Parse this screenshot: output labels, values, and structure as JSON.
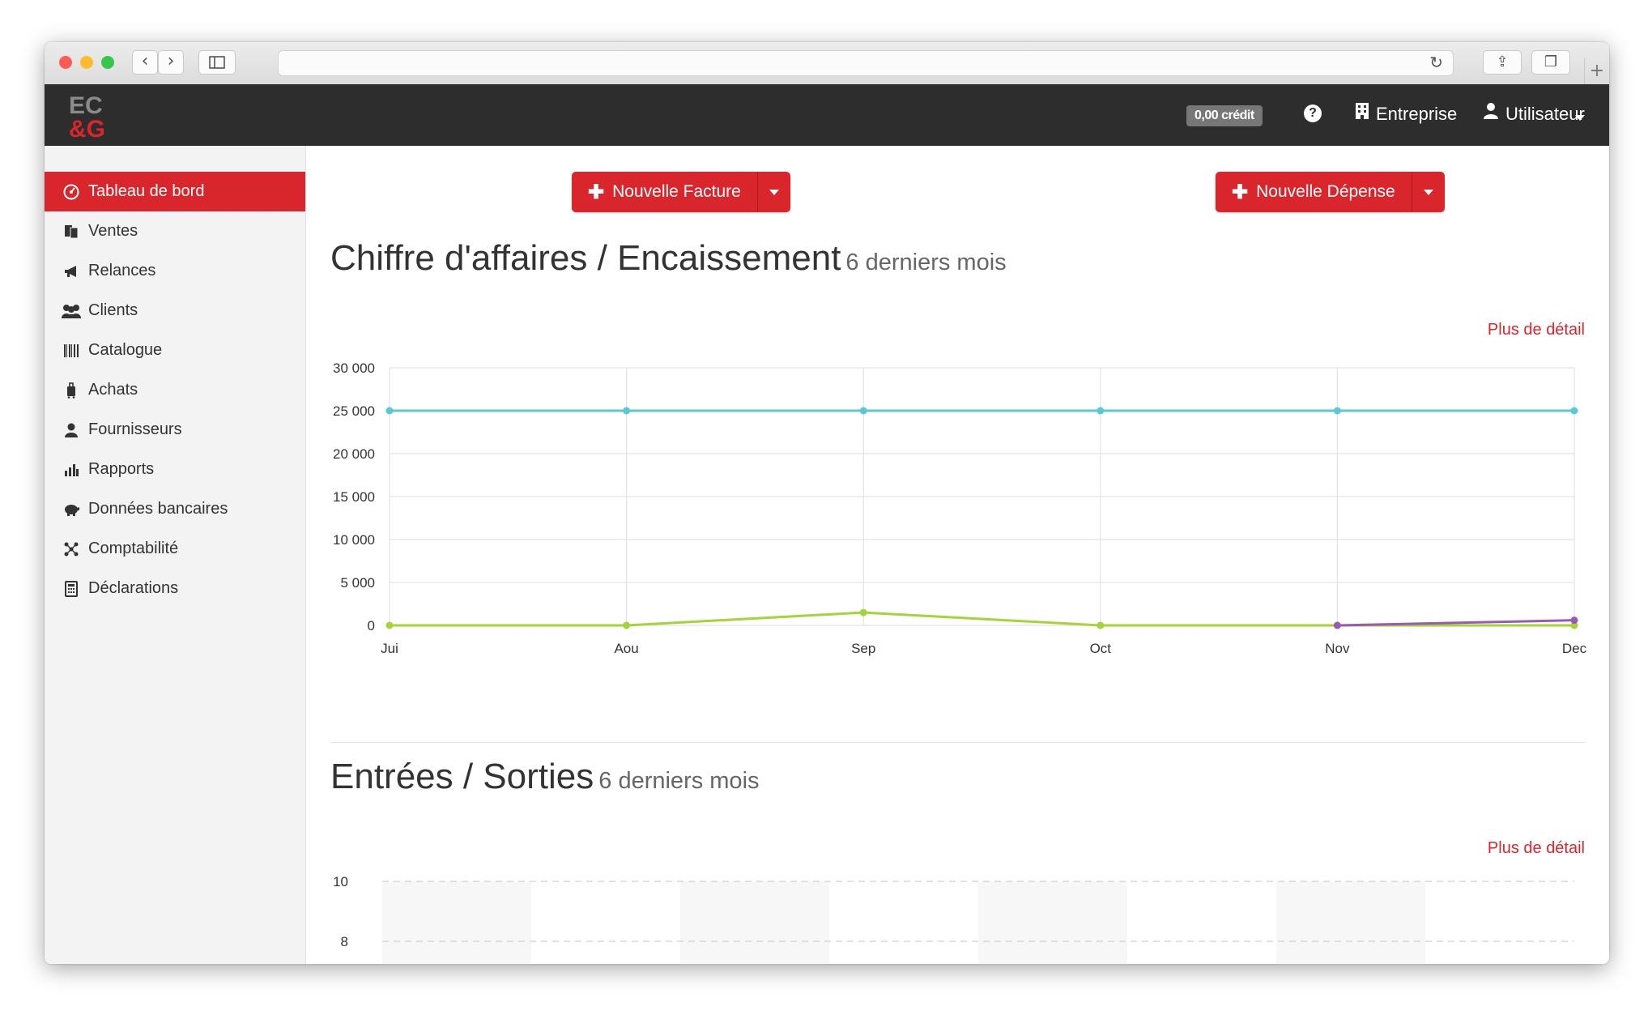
{
  "sidebar": {
    "items": [
      {
        "label": "Tableau de bord",
        "icon": "dashboard-icon",
        "active": true
      },
      {
        "label": "Ventes",
        "icon": "documents-icon"
      },
      {
        "label": "Relances",
        "icon": "megaphone-icon"
      },
      {
        "label": "Clients",
        "icon": "group-icon"
      },
      {
        "label": "Catalogue",
        "icon": "barcode-icon"
      },
      {
        "label": "Achats",
        "icon": "luggage-icon"
      },
      {
        "label": "Fournisseurs",
        "icon": "user-icon"
      },
      {
        "label": "Rapports",
        "icon": "bar-chart-icon"
      },
      {
        "label": "Données bancaires",
        "icon": "piggy-bank-icon"
      },
      {
        "label": "Comptabilité",
        "icon": "network-icon"
      },
      {
        "label": "Déclarations",
        "icon": "calculator-icon"
      }
    ]
  },
  "header": {
    "logo_top": "EC",
    "logo_bottom": "&G",
    "credit": "0,00 crédit",
    "company_label": "Entreprise",
    "user_label": "Utilisateur"
  },
  "actions": {
    "new_invoice": "Nouvelle Facture",
    "new_expense": "Nouvelle Dépense",
    "plus": "✚"
  },
  "chart1": {
    "title": "Chiffre d'affaires / Encaissement",
    "subtitle": "6 derniers mois",
    "detail_link": "Plus de détail"
  },
  "chart2": {
    "title": "Entrées / Sorties",
    "subtitle": "6 derniers mois",
    "detail_link": "Plus de détail"
  },
  "colors": {
    "accent": "#d9262c",
    "series_cyan": "#5bc8d2",
    "series_green": "#a4d33a",
    "series_purple": "#9b59b6"
  },
  "chart_data": [
    {
      "type": "line",
      "categories": [
        "Jui",
        "Aou",
        "Sep",
        "Oct",
        "Nov",
        "Dec"
      ],
      "series": [
        {
          "color": "#5bc8d2",
          "values": [
            25000,
            25000,
            25000,
            25000,
            25000,
            25000
          ]
        },
        {
          "color": "#a4d33a",
          "values": [
            0,
            0,
            1500,
            0,
            0,
            0
          ]
        },
        {
          "color": "#9b59b6",
          "values": [
            null,
            null,
            null,
            null,
            0,
            600
          ]
        }
      ],
      "yticks": [
        "30 000",
        "25 000",
        "20 000",
        "15 000",
        "10 000",
        "5 000",
        "0"
      ],
      "ylim": [
        0,
        30000
      ],
      "grid": true
    },
    {
      "type": "bar",
      "categories": [],
      "series": [],
      "yticks": [
        "10",
        "8"
      ],
      "ylim": [
        0,
        10
      ],
      "grid": true
    }
  ]
}
